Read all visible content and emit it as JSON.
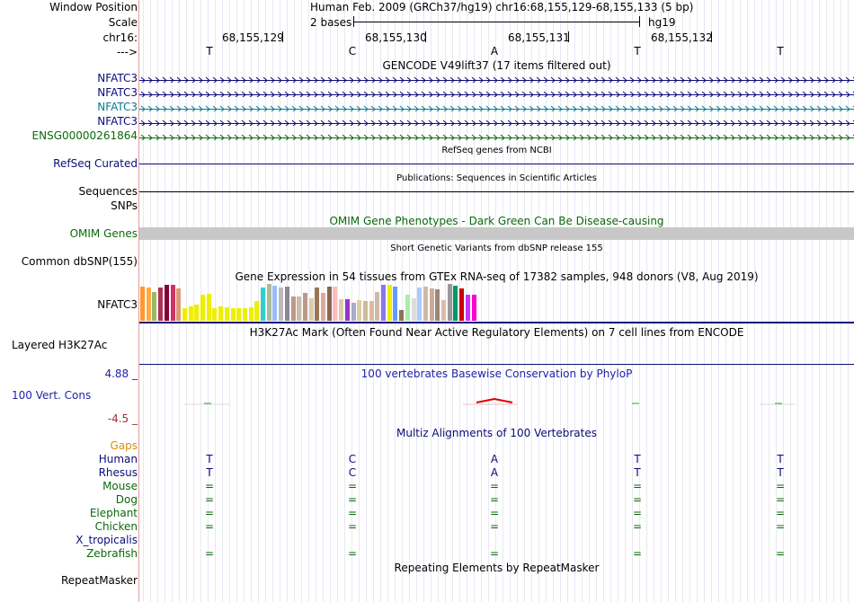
{
  "header": {
    "window_position_label": "Window Position",
    "window_position_value": "Human Feb. 2009 (GRCh37/hg19)   chr16:68,155,129-68,155,133 (5 bp)",
    "scale_label": "Scale",
    "scale_value": "2 bases",
    "scale_assembly": "hg19",
    "chrom_label": "chr16:",
    "strand_label": "--->",
    "positions": [
      "68,155,129",
      "68,155,130",
      "68,155,131",
      "68,155,132"
    ],
    "bases": [
      "T",
      "C",
      "A",
      "T",
      "T"
    ]
  },
  "tracks": {
    "gencode": {
      "title": "GENCODE V49lift37 (17 items filtered out)",
      "items": [
        {
          "name": "NFATC3",
          "color": "#0c0c78"
        },
        {
          "name": "NFATC3",
          "color": "#0c0c78"
        },
        {
          "name": "NFATC3",
          "color": "#0a7890"
        },
        {
          "name": "NFATC3",
          "color": "#0c0c78"
        },
        {
          "name": "ENSG00000261864",
          "color": "#0a6a0a"
        }
      ]
    },
    "refseq": {
      "title": "RefSeq genes from NCBI",
      "label": "RefSeq Curated"
    },
    "publications": {
      "title": "Publications: Sequences in Scientific Articles",
      "label": "Sequences"
    },
    "snps_label": "SNPs",
    "omim": {
      "title": "OMIM Gene Phenotypes - Dark Green Can Be Disease-causing",
      "label": "OMIM Genes"
    },
    "dbsnp": {
      "title": "Short Genetic Variants from dbSNP release 155",
      "label": "Common dbSNP(155)"
    },
    "gtex": {
      "title": "Gene Expression in 54 tissues from GTEx RNA-seq of 17382 samples, 948 donors (V8, Aug 2019)",
      "label": "NFATC3",
      "bars": [
        {
          "v": 0.93,
          "c": "#ff9933"
        },
        {
          "v": 0.9,
          "c": "#ffaa44"
        },
        {
          "v": 0.78,
          "c": "#9ab866"
        },
        {
          "v": 0.9,
          "c": "#aa3355"
        },
        {
          "v": 0.97,
          "c": "#880033"
        },
        {
          "v": 0.97,
          "c": "#cc3366"
        },
        {
          "v": 0.88,
          "c": "#dd9977"
        },
        {
          "v": 0.33,
          "c": "#eeee00"
        },
        {
          "v": 0.4,
          "c": "#eeee00"
        },
        {
          "v": 0.45,
          "c": "#eeee00"
        },
        {
          "v": 0.7,
          "c": "#eeee00"
        },
        {
          "v": 0.72,
          "c": "#eeee00"
        },
        {
          "v": 0.33,
          "c": "#eeee00"
        },
        {
          "v": 0.4,
          "c": "#eeee00"
        },
        {
          "v": 0.36,
          "c": "#eeee00"
        },
        {
          "v": 0.34,
          "c": "#eeee00"
        },
        {
          "v": 0.34,
          "c": "#eeee00"
        },
        {
          "v": 0.33,
          "c": "#eeee00"
        },
        {
          "v": 0.36,
          "c": "#eeee00"
        },
        {
          "v": 0.53,
          "c": "#eeee00"
        },
        {
          "v": 0.9,
          "c": "#33cccc"
        },
        {
          "v": 1.0,
          "c": "#aabb99"
        },
        {
          "v": 0.95,
          "c": "#99bbff"
        },
        {
          "v": 0.9,
          "c": "#bbbbbb"
        },
        {
          "v": 0.93,
          "c": "#888899"
        },
        {
          "v": 0.65,
          "c": "#bb9988"
        },
        {
          "v": 0.66,
          "c": "#ccbbaa"
        },
        {
          "v": 0.76,
          "c": "#bb9988"
        },
        {
          "v": 0.62,
          "c": "#ddccaa"
        },
        {
          "v": 0.9,
          "c": "#997755"
        },
        {
          "v": 0.75,
          "c": "#ddaa99"
        },
        {
          "v": 0.93,
          "c": "#886655"
        },
        {
          "v": 0.93,
          "c": "#ffbbbb"
        },
        {
          "v": 0.58,
          "c": "#ddccaa"
        },
        {
          "v": 0.58,
          "c": "#9933cc"
        },
        {
          "v": 0.48,
          "c": "#aaaacc"
        },
        {
          "v": 0.57,
          "c": "#ddccaa"
        },
        {
          "v": 0.53,
          "c": "#ccbb99"
        },
        {
          "v": 0.54,
          "c": "#ddbb99"
        },
        {
          "v": 0.78,
          "c": "#ccbbaa"
        },
        {
          "v": 0.97,
          "c": "#8877ee"
        },
        {
          "v": 0.97,
          "c": "#eeee00"
        },
        {
          "v": 0.93,
          "c": "#6699ff"
        },
        {
          "v": 0.3,
          "c": "#8a7755"
        },
        {
          "v": 0.7,
          "c": "#aaeeaa"
        },
        {
          "v": 0.62,
          "c": "#dddddd"
        },
        {
          "v": 0.9,
          "c": "#aaccff"
        },
        {
          "v": 0.92,
          "c": "#ccbbaa"
        },
        {
          "v": 0.88,
          "c": "#ccaa99"
        },
        {
          "v": 0.85,
          "c": "#998877"
        },
        {
          "v": 0.57,
          "c": "#ddbbaa"
        },
        {
          "v": 1.0,
          "c": "#999999"
        },
        {
          "v": 0.95,
          "c": "#009966"
        },
        {
          "v": 0.88,
          "c": "#cc0000"
        },
        {
          "v": 0.7,
          "c": "#cc33ff"
        },
        {
          "v": 0.7,
          "c": "#ff00cc"
        }
      ]
    },
    "h3k27ac": {
      "title": "H3K27Ac Mark (Often Found Near Active Regulatory Elements) on 7 cell lines from ENCODE",
      "label": "Layered H3K27Ac"
    },
    "phylop": {
      "title": "100 vertebrates Basewise Conservation by PhyloP",
      "label": "100 Vert. Cons",
      "max": "4.88 _",
      "min": "-4.5 _"
    },
    "multiz": {
      "title": "Multiz Alignments of 100 Vertebrates",
      "gaps_label": "Gaps",
      "species": [
        {
          "name": "Human",
          "color": "#0c0c78",
          "bases": [
            "T",
            "C",
            "A",
            "T",
            "T"
          ]
        },
        {
          "name": "Rhesus",
          "color": "#0c0c78",
          "bases": [
            "T",
            "C",
            "A",
            "T",
            "T"
          ]
        },
        {
          "name": "Mouse",
          "color": "#0a6a0a",
          "bases": [
            "=",
            "=",
            "=",
            "=",
            "="
          ]
        },
        {
          "name": "Dog",
          "color": "#0a6a0a",
          "bases": [
            "=",
            "=",
            "=",
            "=",
            "="
          ]
        },
        {
          "name": "Elephant",
          "color": "#0a6a0a",
          "bases": [
            "=",
            "=",
            "=",
            "=",
            "="
          ]
        },
        {
          "name": "Chicken",
          "color": "#0a6a0a",
          "bases": [
            "=",
            "=",
            "=",
            "=",
            "="
          ]
        },
        {
          "name": "X_tropicalis",
          "color": "#0c0c78",
          "bases": [
            "",
            "",
            "",
            "",
            ""
          ]
        },
        {
          "name": "Zebrafish",
          "color": "#0a6a0a",
          "bases": [
            "=",
            "=",
            "=",
            "=",
            "="
          ]
        }
      ]
    },
    "repeatmasker": {
      "title": "Repeating Elements by RepeatMasker",
      "label": "RepeatMasker"
    }
  },
  "colors": {
    "navy": "#0c0c78",
    "green": "#0a6a0a",
    "teal": "#0a7890",
    "gaps": "#e08c00",
    "phylop_max": "#2222aa",
    "phylop_min": "#993333",
    "omim_bar": "#c8c8c8"
  }
}
